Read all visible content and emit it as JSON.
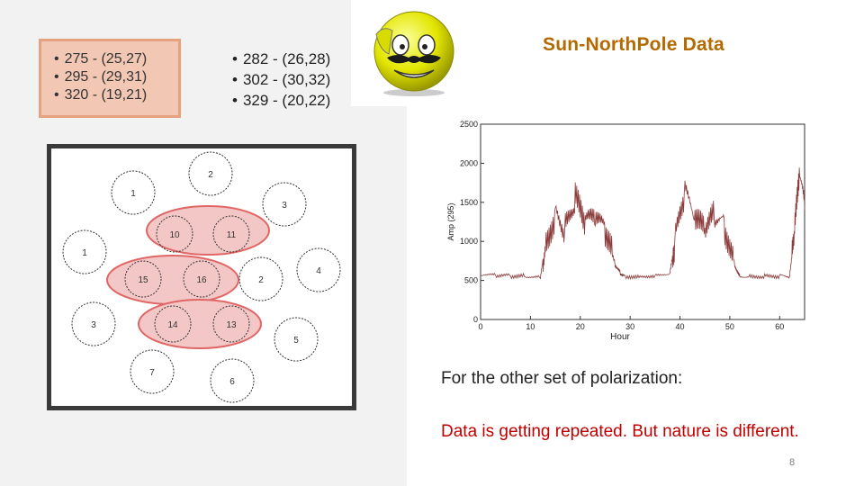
{
  "boxed_list": {
    "items": [
      "275 - (25,27)",
      "295 - (29,31)",
      "320 - (19,21)"
    ]
  },
  "plain_list": {
    "items": [
      "282 - (26,28)",
      "302 - (30,32)",
      "329 - (20,22)"
    ]
  },
  "diagram": {
    "nodes": [
      "2",
      "1",
      "3",
      "10",
      "11",
      "1",
      "4",
      "15",
      "16",
      "2",
      "3",
      "14",
      "13",
      "5",
      "7",
      "6"
    ],
    "highlight_color": "#e06666"
  },
  "title": "Sun-NorthPole Data",
  "chart_data": {
    "type": "line",
    "title": "",
    "xlabel": "Hour",
    "ylabel": "Amp (295)",
    "xlim": [
      0,
      65
    ],
    "ylim": [
      0,
      2500
    ],
    "xticks": [
      "0",
      "10",
      "20",
      "30",
      "40",
      "50",
      "60"
    ],
    "yticks": [
      "0",
      "500",
      "1000",
      "1500",
      "2000",
      "2500"
    ],
    "series_color": "#8b3a3a",
    "x": [
      0,
      3,
      6,
      9,
      12,
      13,
      15,
      17,
      19,
      21,
      23,
      25,
      27,
      28,
      29,
      32,
      35,
      38,
      39,
      41,
      43,
      45,
      47,
      49,
      51,
      52,
      54,
      57,
      60,
      62,
      63,
      64,
      65
    ],
    "y": [
      560,
      560,
      560,
      560,
      555,
      1000,
      1400,
      1150,
      1500,
      1200,
      1250,
      1100,
      700,
      600,
      560,
      560,
      570,
      600,
      1000,
      1600,
      1200,
      1100,
      1300,
      1200,
      700,
      560,
      560,
      560,
      560,
      550,
      1100,
      1800,
      1400
    ]
  },
  "caption": "For the other set of polarization:",
  "note": "Data is getting repeated. But nature is different.",
  "page_number": "8"
}
